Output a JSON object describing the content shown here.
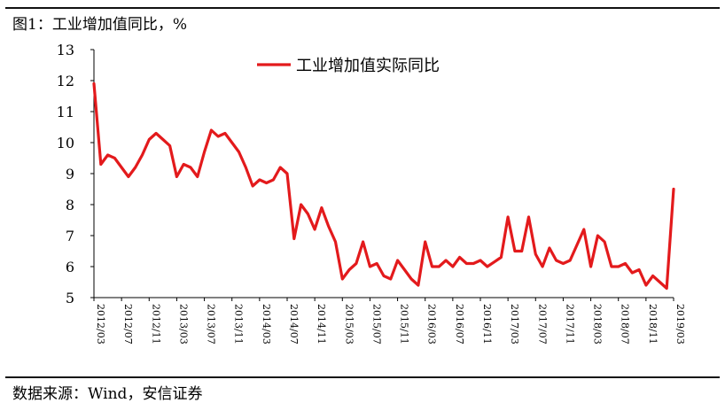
{
  "figure_title": "图1：工业增加值同比，%",
  "source": "数据来源：Wind，安信证券",
  "chart_data": {
    "type": "line",
    "title": "图1：工业增加值同比，%",
    "xlabel": "",
    "ylabel": "",
    "ylim": [
      5,
      13
    ],
    "yticks": [
      5,
      6,
      7,
      8,
      9,
      10,
      11,
      12,
      13
    ],
    "grid": false,
    "legend_position": "top-center",
    "x_tick_labels": [
      "2012/03",
      "2012/07",
      "2012/11",
      "2013/03",
      "2013/07",
      "2013/11",
      "2014/03",
      "2014/07",
      "2014/11",
      "2015/03",
      "2015/07",
      "2015/11",
      "2016/03",
      "2016/07",
      "2016/11",
      "2017/03",
      "2017/07",
      "2017/11",
      "2018/03",
      "2018/07",
      "2018/11",
      "2019/03"
    ],
    "x": [
      "2012/03",
      "2012/04",
      "2012/05",
      "2012/06",
      "2012/07",
      "2012/08",
      "2012/09",
      "2012/10",
      "2012/11",
      "2012/12",
      "2013/01",
      "2013/02",
      "2013/03",
      "2013/04",
      "2013/05",
      "2013/06",
      "2013/07",
      "2013/08",
      "2013/09",
      "2013/10",
      "2013/11",
      "2013/12",
      "2014/01",
      "2014/02",
      "2014/03",
      "2014/04",
      "2014/05",
      "2014/06",
      "2014/07",
      "2014/08",
      "2014/09",
      "2014/10",
      "2014/11",
      "2014/12",
      "2015/01",
      "2015/02",
      "2015/03",
      "2015/04",
      "2015/05",
      "2015/06",
      "2015/07",
      "2015/08",
      "2015/09",
      "2015/10",
      "2015/11",
      "2015/12",
      "2016/01",
      "2016/02",
      "2016/03",
      "2016/04",
      "2016/05",
      "2016/06",
      "2016/07",
      "2016/08",
      "2016/09",
      "2016/10",
      "2016/11",
      "2016/12",
      "2017/01",
      "2017/02",
      "2017/03",
      "2017/04",
      "2017/05",
      "2017/06",
      "2017/07",
      "2017/08",
      "2017/09",
      "2017/10",
      "2017/11",
      "2017/12",
      "2018/01",
      "2018/02",
      "2018/03",
      "2018/04",
      "2018/05",
      "2018/06",
      "2018/07",
      "2018/08",
      "2018/09",
      "2018/10",
      "2018/11",
      "2018/12",
      "2019/01",
      "2019/02",
      "2019/03"
    ],
    "series": [
      {
        "name": "工业增加值实际同比",
        "color": "#e31a1c",
        "values": [
          11.9,
          9.3,
          9.6,
          9.5,
          9.2,
          8.9,
          9.2,
          9.6,
          10.1,
          10.3,
          10.1,
          9.9,
          8.9,
          9.3,
          9.2,
          8.9,
          9.7,
          10.4,
          10.2,
          10.3,
          10.0,
          9.7,
          9.2,
          8.6,
          8.8,
          8.7,
          8.8,
          9.2,
          9.0,
          6.9,
          8.0,
          7.7,
          7.2,
          7.9,
          7.3,
          6.8,
          5.6,
          5.9,
          6.1,
          6.8,
          6.0,
          6.1,
          5.7,
          5.6,
          6.2,
          5.9,
          5.6,
          5.4,
          6.8,
          6.0,
          6.0,
          6.2,
          6.0,
          6.3,
          6.1,
          6.1,
          6.2,
          6.0,
          6.15,
          6.3,
          7.6,
          6.5,
          6.5,
          7.6,
          6.4,
          6.0,
          6.6,
          6.2,
          6.1,
          6.2,
          6.7,
          7.2,
          6.0,
          7.0,
          6.8,
          6.0,
          6.0,
          6.1,
          5.8,
          5.9,
          5.4,
          5.7,
          5.5,
          5.3,
          8.5
        ]
      }
    ]
  }
}
